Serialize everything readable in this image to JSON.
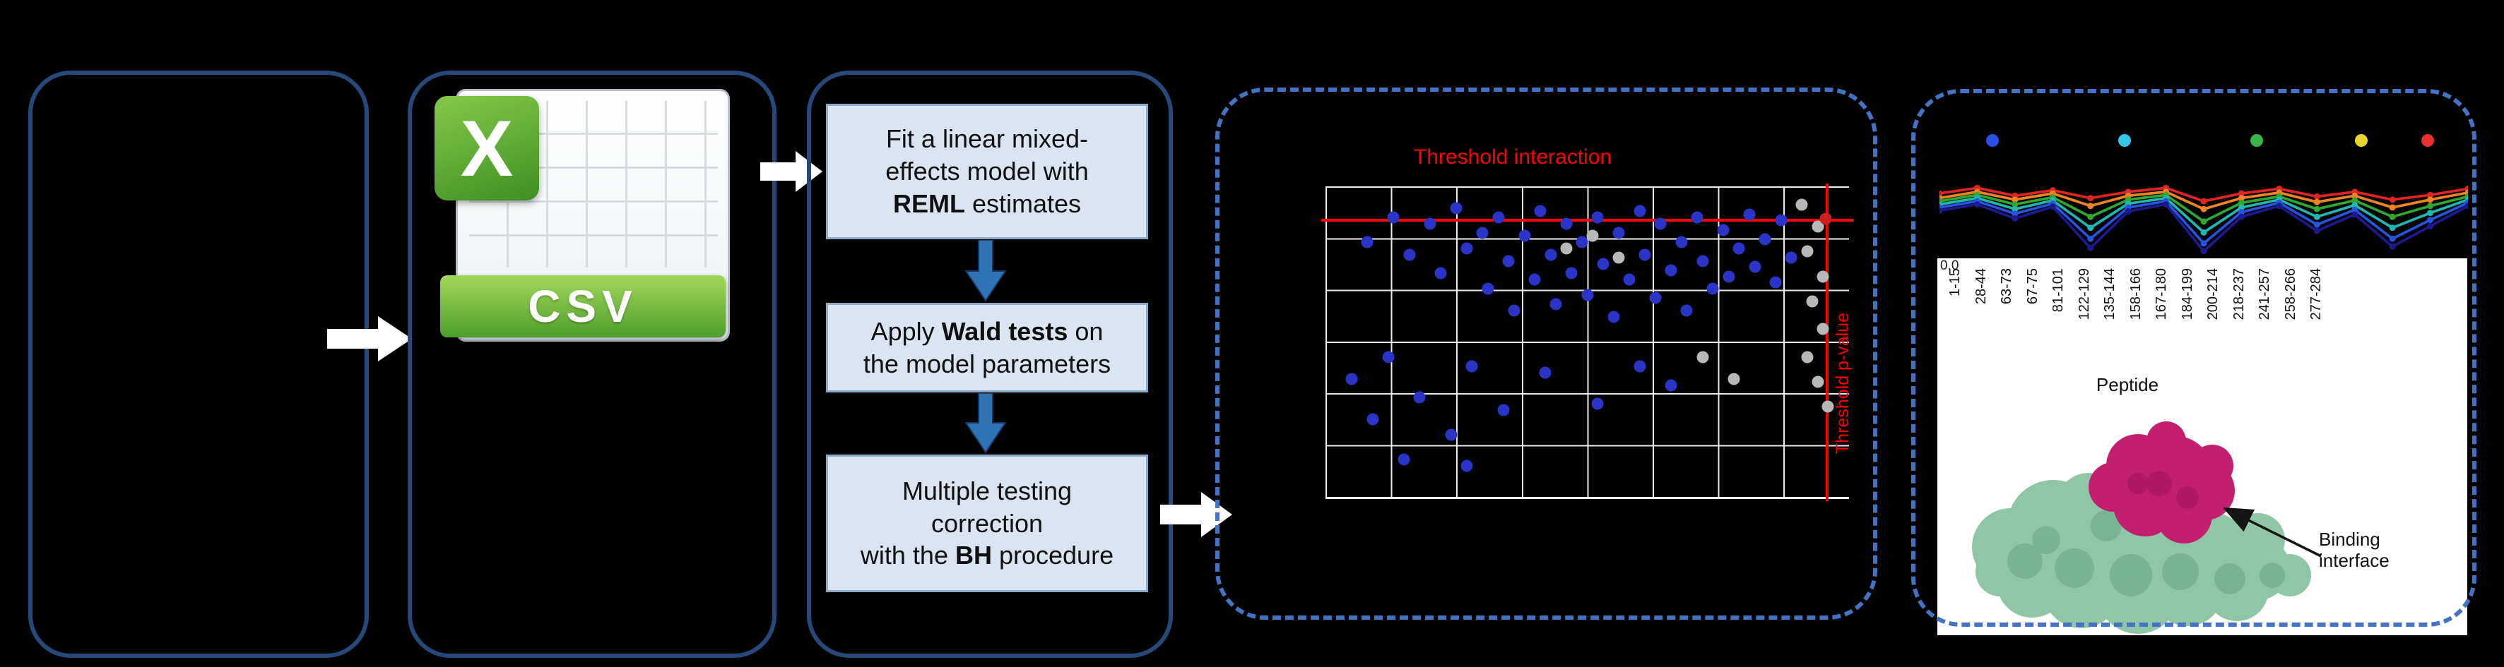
{
  "colors": {
    "solid_box_border": "#27497a",
    "dashed_box_border": "#4472c4",
    "process_box_fill": "#dbe5f1",
    "process_box_border": "#8eaacb",
    "flow_arrow_blue": "#2e74b5",
    "flow_arrow_outline": "#17365d",
    "white_arrow": "#ffffff",
    "threshold_red": "#ff0000",
    "csv_green": "#5aa332",
    "protein_green": "#8fc6a8",
    "protein_green_dark": "#5f9e7f",
    "protein_magenta": "#c21f6e",
    "protein_magenta_dark": "#8f1050"
  },
  "csv": {
    "logo_letter": "X",
    "format_label": "CSV"
  },
  "workflow": {
    "steps": {
      "fit": {
        "before": "Fit a linear mixed-\neffects model with\n",
        "bold": "REML",
        "after": " estimates"
      },
      "wald": {
        "before": "Apply ",
        "bold": "Wald tests",
        "after": " on\nthe model parameters"
      },
      "bh": {
        "before": "Multiple testing\ncorrection\nwith the ",
        "bold": "BH",
        "after": " procedure"
      }
    }
  },
  "structure": {
    "label": "Binding\ninterface"
  },
  "chart_data": [
    {
      "id": "threshold-scatter",
      "type": "scatter",
      "title": "Threshold interaction",
      "right_axis_label": "Threshold p-value",
      "coords": "normalized 0-1 of plot area (source axis tick labels not legible)",
      "threshold_lines": {
        "horizontal_y": 0.105,
        "vertical_x": 0.955
      },
      "highlight_point": {
        "color": "#cc2020",
        "point": [
          0.955,
          0.105
        ]
      },
      "series": [
        {
          "name": "blue",
          "color": "#2a35c8",
          "points": [
            [
              0.08,
              0.18
            ],
            [
              0.13,
              0.1
            ],
            [
              0.16,
              0.22
            ],
            [
              0.2,
              0.12
            ],
            [
              0.22,
              0.28
            ],
            [
              0.25,
              0.07
            ],
            [
              0.27,
              0.2
            ],
            [
              0.3,
              0.15
            ],
            [
              0.31,
              0.33
            ],
            [
              0.33,
              0.1
            ],
            [
              0.35,
              0.24
            ],
            [
              0.36,
              0.4
            ],
            [
              0.38,
              0.16
            ],
            [
              0.4,
              0.3
            ],
            [
              0.41,
              0.08
            ],
            [
              0.43,
              0.22
            ],
            [
              0.44,
              0.38
            ],
            [
              0.46,
              0.12
            ],
            [
              0.47,
              0.28
            ],
            [
              0.49,
              0.18
            ],
            [
              0.5,
              0.35
            ],
            [
              0.52,
              0.1
            ],
            [
              0.53,
              0.25
            ],
            [
              0.55,
              0.42
            ],
            [
              0.56,
              0.15
            ],
            [
              0.58,
              0.3
            ],
            [
              0.6,
              0.08
            ],
            [
              0.61,
              0.22
            ],
            [
              0.63,
              0.36
            ],
            [
              0.64,
              0.12
            ],
            [
              0.66,
              0.27
            ],
            [
              0.68,
              0.18
            ],
            [
              0.69,
              0.4
            ],
            [
              0.71,
              0.1
            ],
            [
              0.72,
              0.24
            ],
            [
              0.74,
              0.33
            ],
            [
              0.76,
              0.14
            ],
            [
              0.77,
              0.29
            ],
            [
              0.79,
              0.2
            ],
            [
              0.81,
              0.09
            ],
            [
              0.82,
              0.26
            ],
            [
              0.84,
              0.17
            ],
            [
              0.86,
              0.31
            ],
            [
              0.87,
              0.11
            ],
            [
              0.89,
              0.23
            ],
            [
              0.05,
              0.62
            ],
            [
              0.09,
              0.75
            ],
            [
              0.12,
              0.55
            ],
            [
              0.18,
              0.68
            ],
            [
              0.24,
              0.8
            ],
            [
              0.28,
              0.58
            ],
            [
              0.34,
              0.72
            ],
            [
              0.42,
              0.6
            ],
            [
              0.27,
              0.9
            ],
            [
              0.15,
              0.88
            ],
            [
              0.52,
              0.7
            ],
            [
              0.6,
              0.58
            ],
            [
              0.66,
              0.64
            ]
          ]
        },
        {
          "name": "gray",
          "color": "#b8b8b8",
          "points": [
            [
              0.91,
              0.06
            ],
            [
              0.94,
              0.13
            ],
            [
              0.92,
              0.21
            ],
            [
              0.95,
              0.29
            ],
            [
              0.93,
              0.37
            ],
            [
              0.95,
              0.46
            ],
            [
              0.92,
              0.55
            ],
            [
              0.94,
              0.63
            ],
            [
              0.96,
              0.71
            ],
            [
              0.46,
              0.2
            ],
            [
              0.51,
              0.16
            ],
            [
              0.56,
              0.23
            ],
            [
              0.72,
              0.55
            ],
            [
              0.78,
              0.62
            ]
          ]
        }
      ]
    },
    {
      "id": "uptake-profile",
      "type": "line",
      "xlabel": "Peptide",
      "y_tick_label": "0.0",
      "x_tick_labels": [
        "1-15",
        "28-44",
        "63-73",
        "67-75",
        "81-101",
        "122-129",
        "135-144",
        "158-166",
        "167-180",
        "184-199",
        "200-214",
        "218-237",
        "241-257",
        "258-266",
        "277-284"
      ],
      "timepoint_dot_colors": [
        "#2b50e8",
        "#35c8e8",
        "#3ab54a",
        "#e8d52e",
        "#e83030"
      ],
      "timepoint_dot_x": [
        0.1,
        0.35,
        0.6,
        0.798,
        0.924
      ],
      "y_scale": "normalized uptake, 0 = top of trace band, 1 = deepest dip",
      "series": [
        {
          "name": "red",
          "color": "#e02424",
          "values": [
            0.22,
            0.15,
            0.25,
            0.18,
            0.28,
            0.2,
            0.15,
            0.32,
            0.22,
            0.16,
            0.26,
            0.2,
            0.3,
            0.24,
            0.16
          ]
        },
        {
          "name": "orange",
          "color": "#f28322",
          "values": [
            0.28,
            0.2,
            0.3,
            0.22,
            0.38,
            0.25,
            0.2,
            0.42,
            0.28,
            0.21,
            0.33,
            0.25,
            0.4,
            0.3,
            0.21
          ]
        },
        {
          "name": "green",
          "color": "#2fa82f",
          "values": [
            0.32,
            0.24,
            0.36,
            0.27,
            0.52,
            0.3,
            0.24,
            0.58,
            0.34,
            0.26,
            0.42,
            0.31,
            0.52,
            0.38,
            0.26
          ]
        },
        {
          "name": "teal",
          "color": "#1fb8b0",
          "values": [
            0.36,
            0.28,
            0.42,
            0.31,
            0.66,
            0.35,
            0.28,
            0.72,
            0.4,
            0.3,
            0.52,
            0.37,
            0.66,
            0.47,
            0.3
          ]
        },
        {
          "name": "blue",
          "color": "#2653e0",
          "values": [
            0.4,
            0.32,
            0.48,
            0.35,
            0.8,
            0.4,
            0.32,
            0.86,
            0.46,
            0.34,
            0.62,
            0.43,
            0.8,
            0.56,
            0.34
          ]
        },
        {
          "name": "navy",
          "color": "#1b1b8f",
          "values": [
            0.44,
            0.36,
            0.54,
            0.39,
            0.92,
            0.45,
            0.36,
            0.96,
            0.52,
            0.38,
            0.7,
            0.49,
            0.9,
            0.64,
            0.38
          ]
        }
      ]
    }
  ]
}
